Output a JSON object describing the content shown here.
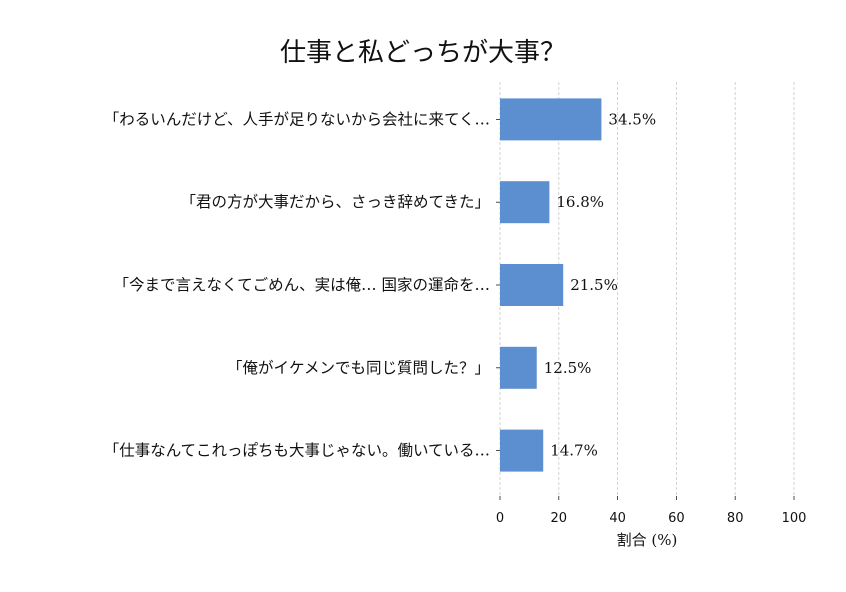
{
  "chart_data": {
    "type": "bar",
    "orientation": "horizontal",
    "title": "仕事と私どっちが大事？",
    "xlabel": "割合 (%)",
    "ylabel": "",
    "xlim": [
      0,
      100
    ],
    "xticks": [
      "0",
      "20",
      "40",
      "60",
      "80",
      "100"
    ],
    "grid": "vertical dashed",
    "bar_color": "#5b8fd0",
    "categories": [
      "「わるいんだけど、人手が足りないから会社に来てく…",
      "「君の方が大事だから、さっき辞めてきた」",
      "「今まで言えなくてごめん、実は俺… 国家の運命を…",
      "「俺がイケメンでも同じ質問した？」",
      "「仕事なんてこれっぽちも大事じゃない。働いている…"
    ],
    "values": [
      34.5,
      16.8,
      21.5,
      12.5,
      14.7
    ],
    "value_labels": [
      "34.5%",
      "16.8%",
      "21.5%",
      "12.5%",
      "14.7%"
    ]
  }
}
